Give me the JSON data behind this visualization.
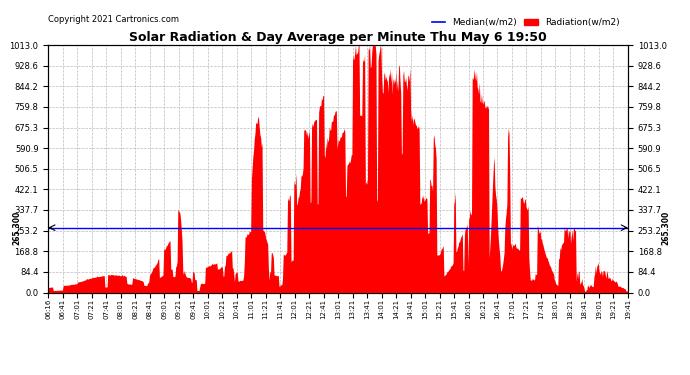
{
  "title": "Solar Radiation & Day Average per Minute Thu May 6 19:50",
  "copyright": "Copyright 2021 Cartronics.com",
  "legend_median": "Median(w/m2)",
  "legend_radiation": "Radiation(w/m2)",
  "median_value": 265.3,
  "median_label": "265.300",
  "y_max": 1013.0,
  "y_min": 0.0,
  "y_ticks": [
    0.0,
    84.4,
    168.8,
    253.2,
    337.7,
    422.1,
    506.5,
    590.9,
    675.3,
    759.8,
    844.2,
    928.6,
    1013.0
  ],
  "background_color": "#ffffff",
  "bar_color": "#ff0000",
  "median_color": "#0000ff",
  "grid_color": "#bbbbbb",
  "title_color": "#000000",
  "copyright_color": "#000000",
  "x_tick_labels": [
    "06:16",
    "06:41",
    "07:01",
    "07:21",
    "07:41",
    "08:01",
    "08:21",
    "08:41",
    "09:01",
    "09:21",
    "09:41",
    "10:01",
    "10:21",
    "10:41",
    "11:01",
    "11:21",
    "11:41",
    "12:01",
    "12:21",
    "12:41",
    "13:01",
    "13:21",
    "13:41",
    "14:01",
    "14:21",
    "14:41",
    "15:01",
    "15:21",
    "15:41",
    "16:01",
    "16:21",
    "16:41",
    "17:01",
    "17:21",
    "17:41",
    "18:01",
    "18:21",
    "18:41",
    "19:01",
    "19:21",
    "19:41"
  ],
  "num_points": 820,
  "seed": 12345
}
